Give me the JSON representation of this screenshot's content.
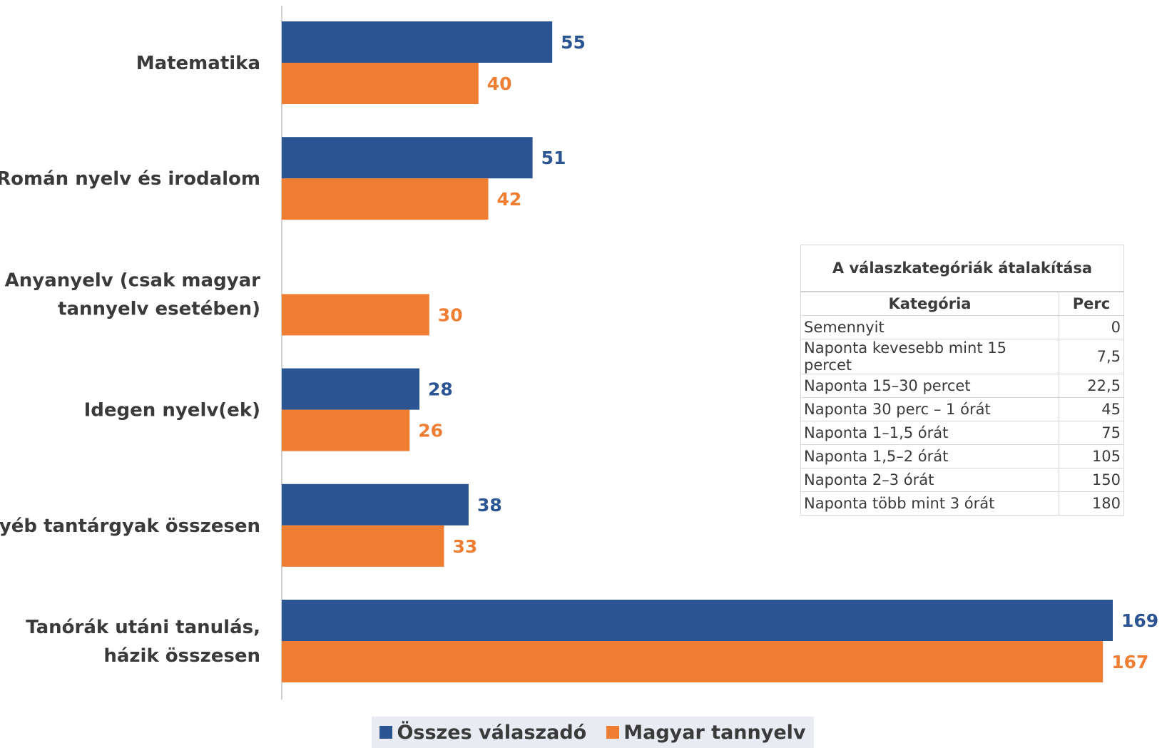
{
  "chart_data": {
    "type": "bar",
    "orientation": "horizontal",
    "categories": [
      [
        "Matematika"
      ],
      [
        "Román nyelv és irodalom"
      ],
      [
        "Anyanyelv (csak magyar",
        "tannyelv esetében)"
      ],
      [
        "Idegen nyelv(ek)"
      ],
      [
        "Egyéb tantárgyak összesen"
      ],
      [
        "Tanórák utáni tanulás,",
        "házik összesen"
      ]
    ],
    "series": [
      {
        "name": "Összes válaszadó",
        "color": "#2b5592",
        "values": [
          55,
          51,
          null,
          28,
          38,
          169
        ]
      },
      {
        "name": "Magyar tannyelv",
        "color": "#ef7d32",
        "values": [
          40,
          42,
          30,
          26,
          33,
          167
        ]
      }
    ],
    "xlim": [
      0,
      175
    ],
    "grid": false,
    "data_labels": true,
    "legend_position": "bottom"
  },
  "conversion_table": {
    "title": "A válaszkategóriák átalakítása",
    "headers": [
      "Kategória",
      "Perc"
    ],
    "rows": [
      [
        "Semennyit",
        "0"
      ],
      [
        "Naponta kevesebb mint 15 percet",
        "7,5"
      ],
      [
        "Naponta 15–30 percet",
        "22,5"
      ],
      [
        "Naponta 30 perc – 1 órát",
        "45"
      ],
      [
        "Naponta 1–1,5 órát",
        "75"
      ],
      [
        "Naponta 1,5–2 órát",
        "105"
      ],
      [
        "Naponta 2–3 órát",
        "150"
      ],
      [
        "Naponta több mint 3 órát",
        "180"
      ]
    ]
  },
  "legend": {
    "items": [
      {
        "label": "Összes válaszadó",
        "color": "#2b5592"
      },
      {
        "label": "Magyar tannyelv",
        "color": "#ef7d32"
      }
    ]
  }
}
